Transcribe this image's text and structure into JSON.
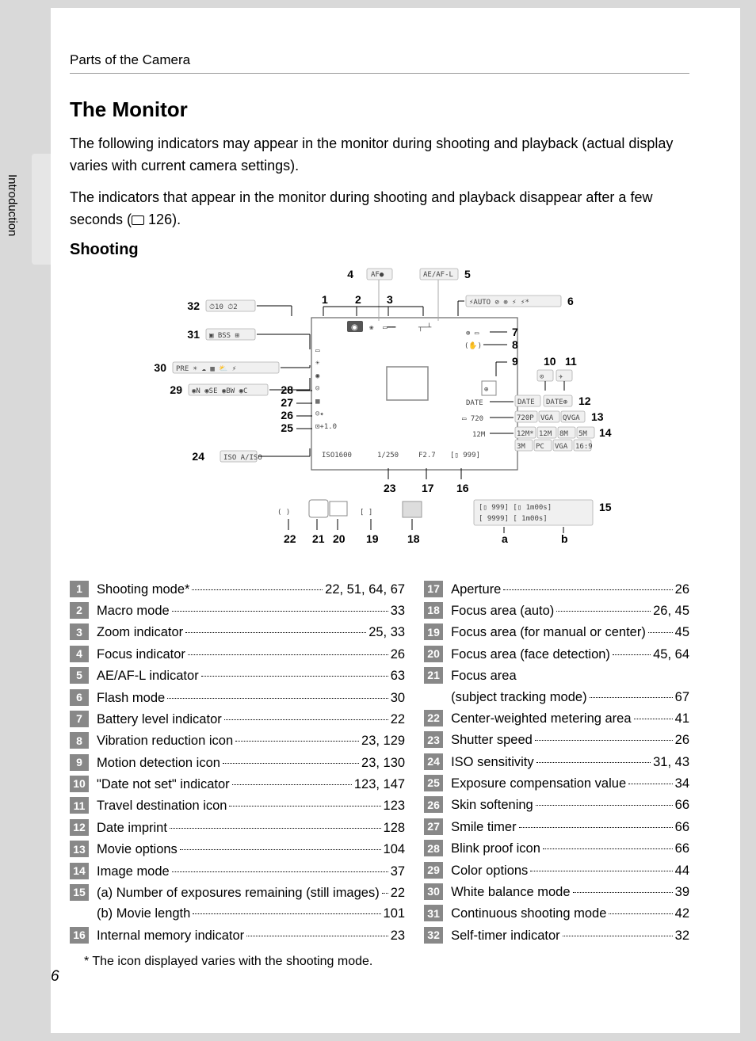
{
  "breadcrumb": "Parts of the Camera",
  "side_label": "Introduction",
  "title": "The Monitor",
  "para1": "The following indicators may appear in the monitor during shooting and playback (actual display varies with current camera settings).",
  "para2_a": "The indicators that appear in the monitor during shooting and playback disappear after a few seconds (",
  "para2_b": " 126).",
  "subtitle": "Shooting",
  "footnote": "*  The icon displayed varies with the shooting mode.",
  "page_number": "6",
  "callout_a": "a",
  "callout_b": "b",
  "diagram": {
    "n1": "1",
    "n2": "2",
    "n3": "3",
    "n4": "4",
    "n5": "5",
    "n6": "6",
    "n7": "7",
    "n8": "8",
    "n9": "9",
    "n10": "10",
    "n11": "11",
    "n12": "12",
    "n13": "13",
    "n14": "14",
    "n15": "15",
    "n16": "16",
    "n17": "17",
    "n18": "18",
    "n19": "19",
    "n20": "20",
    "n21": "21",
    "n22": "22",
    "n23": "23",
    "n24": "24",
    "n25": "25",
    "n26": "26",
    "n27": "27",
    "n28": "28",
    "n29": "29",
    "n30": "30",
    "n31": "31",
    "n32": "32"
  },
  "left_legend": [
    {
      "n": "1",
      "label": "Shooting mode*",
      "pg": "22, 51, 64, 67"
    },
    {
      "n": "2",
      "label": "Macro mode",
      "pg": "33"
    },
    {
      "n": "3",
      "label": "Zoom indicator",
      "pg": "25, 33"
    },
    {
      "n": "4",
      "label": "Focus indicator",
      "pg": "26"
    },
    {
      "n": "5",
      "label": "AE/AF-L indicator",
      "pg": "63"
    },
    {
      "n": "6",
      "label": "Flash mode",
      "pg": "30"
    },
    {
      "n": "7",
      "label": "Battery level indicator",
      "pg": "22"
    },
    {
      "n": "8",
      "label": "Vibration reduction icon",
      "pg": "23, 129"
    },
    {
      "n": "9",
      "label": "Motion detection icon",
      "pg": "23, 130"
    },
    {
      "n": "10",
      "label": "\"Date not set\" indicator",
      "pg": "123, 147"
    },
    {
      "n": "11",
      "label": "Travel destination icon",
      "pg": "123"
    },
    {
      "n": "12",
      "label": "Date imprint",
      "pg": "128"
    },
    {
      "n": "13",
      "label": "Movie options",
      "pg": "104"
    },
    {
      "n": "14",
      "label": "Image mode",
      "pg": "37"
    }
  ],
  "left_15": {
    "n": "15",
    "a_label": "(a)  Number of exposures remaining (still images)",
    "a_pg": "22",
    "b_label": "(b)  Movie length",
    "b_pg": "101"
  },
  "left_16": {
    "n": "16",
    "label": "Internal memory indicator",
    "pg": "23"
  },
  "right_legend": [
    {
      "n": "17",
      "label": "Aperture",
      "pg": "26"
    },
    {
      "n": "18",
      "label": "Focus area (auto)",
      "pg": "26, 45"
    },
    {
      "n": "19",
      "label": "Focus area (for manual or center)",
      "pg": "45"
    },
    {
      "n": "20",
      "label": "Focus area (face detection)",
      "pg": "45, 64"
    }
  ],
  "right_21": {
    "n": "21",
    "label_a": "Focus area",
    "label_b": "(subject tracking mode)",
    "pg": "67"
  },
  "right_legend2": [
    {
      "n": "22",
      "label": "Center-weighted metering area",
      "pg": "41"
    },
    {
      "n": "23",
      "label": "Shutter speed",
      "pg": "26"
    },
    {
      "n": "24",
      "label": "ISO sensitivity",
      "pg": "31, 43"
    },
    {
      "n": "25",
      "label": "Exposure compensation value",
      "pg": "34"
    },
    {
      "n": "26",
      "label": "Skin softening",
      "pg": "66"
    },
    {
      "n": "27",
      "label": "Smile timer",
      "pg": "66"
    },
    {
      "n": "28",
      "label": "Blink proof icon",
      "pg": "66"
    },
    {
      "n": "29",
      "label": "Color options",
      "pg": "44"
    },
    {
      "n": "30",
      "label": "White balance mode",
      "pg": "39"
    },
    {
      "n": "31",
      "label": "Continuous shooting mode",
      "pg": "42"
    },
    {
      "n": "32",
      "label": "Self-timer indicator",
      "pg": "32"
    }
  ]
}
